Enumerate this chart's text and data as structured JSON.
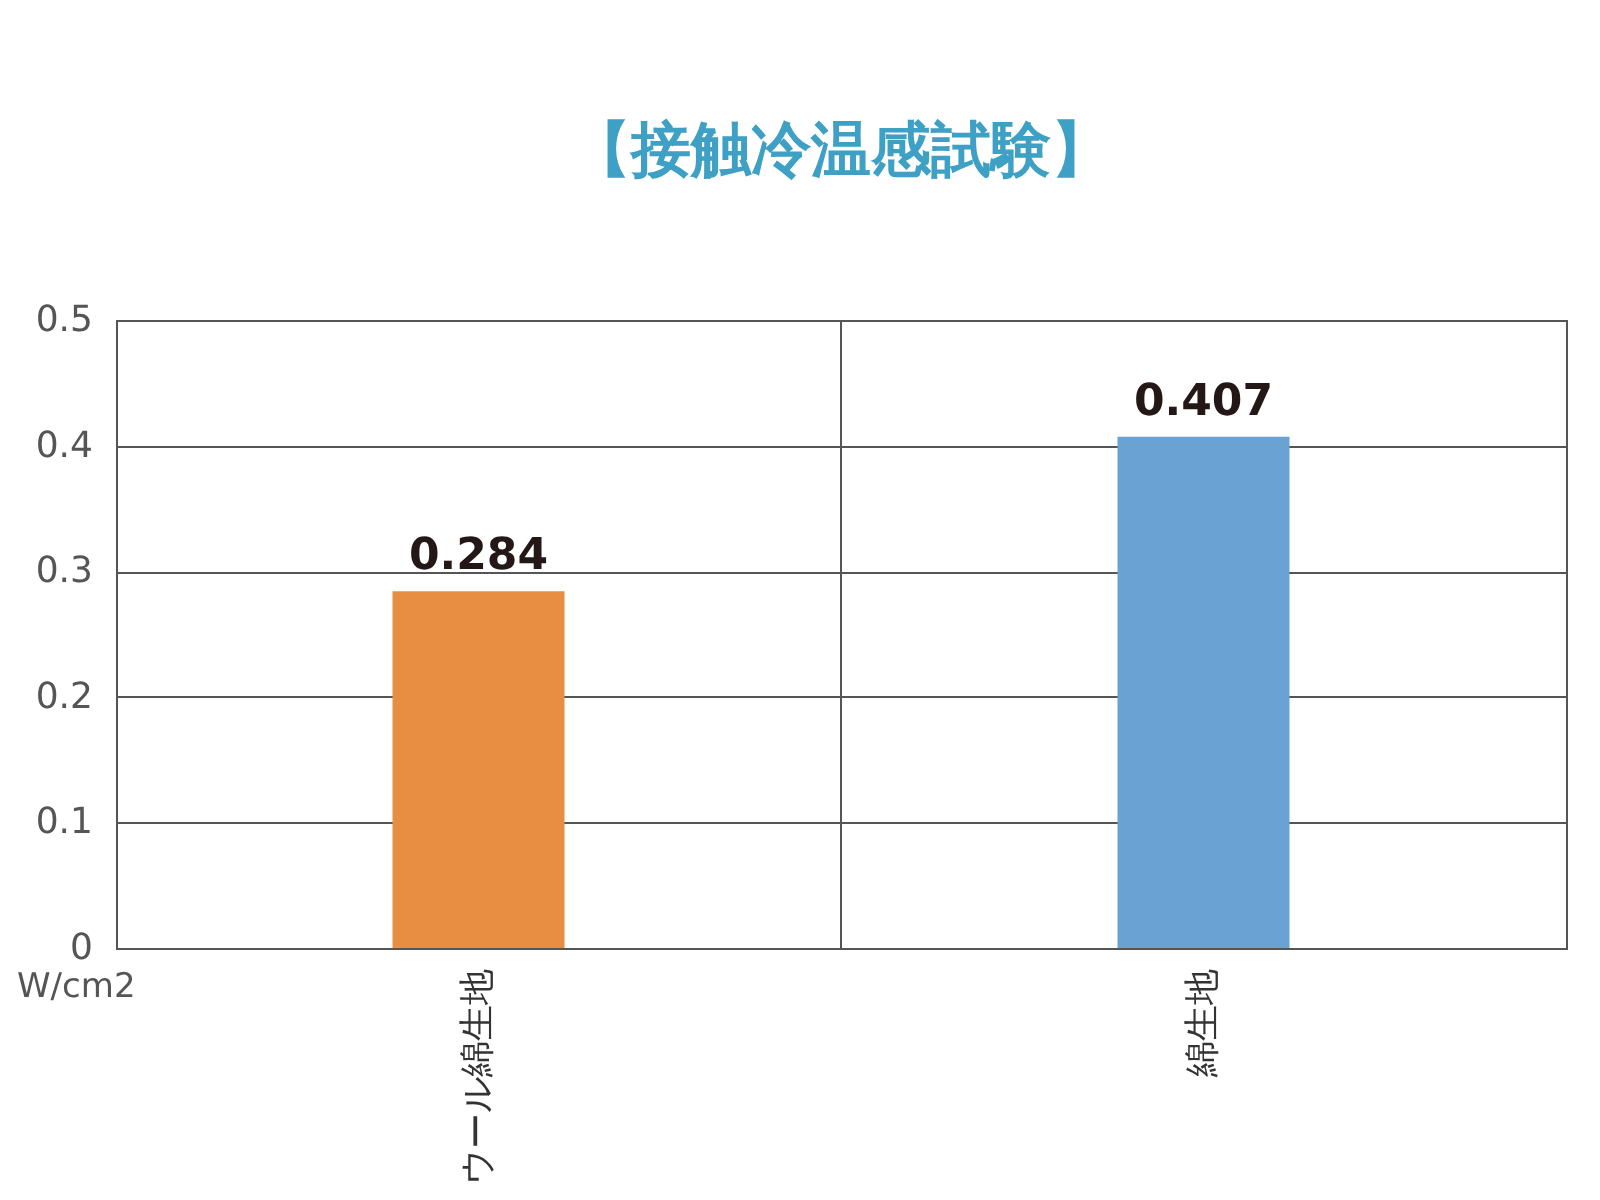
{
  "chart_data": {
    "type": "bar",
    "title": "【接触冷温感試験】",
    "ylabel": "W/cm2",
    "categories": [
      "ウール綿生地",
      "綿生地"
    ],
    "values": [
      0.284,
      0.407
    ],
    "colors": [
      "#e88e42",
      "#6aa3d3"
    ],
    "ylim": [
      0,
      0.5
    ],
    "yticks": [
      0,
      0.1,
      0.2,
      0.3,
      0.4,
      0.5
    ],
    "grid": true,
    "data_labels": true
  }
}
